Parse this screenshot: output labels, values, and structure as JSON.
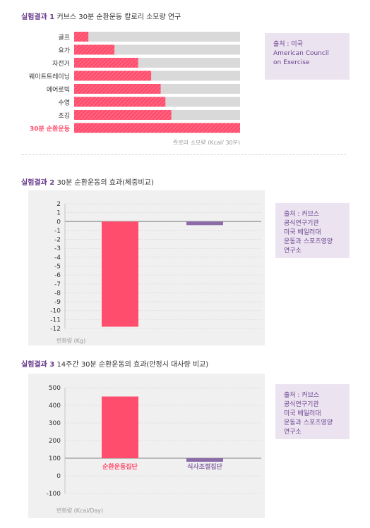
{
  "sections": [
    {
      "label": "실험결과 1",
      "title": "커브스 30분 순환운동 칼로리 소모량 연구"
    },
    {
      "label": "실험결과 2",
      "title": "30분 순환운동의 효과(체중비교)"
    },
    {
      "label": "실험결과 3",
      "title": "14주간 30분 순환운동의 효과(안정시 대사량 비교)"
    }
  ],
  "sources": [
    [
      "출처 : 미국",
      "American Council",
      "on Exercise"
    ],
    [
      "출처 : 커브스",
      "공식연구기관",
      "미국 베일러대",
      "운동과 스포츠영양",
      "연구소"
    ],
    [
      "출처 : 커브스",
      "공식연구기관",
      "미국 베일러대",
      "운동과 스포츠영양",
      "연구소"
    ]
  ],
  "colors": {
    "accent": "#ff4d6d",
    "purple": "#8b6ba8",
    "track": "#d9d9d9",
    "panel": "#f0f0f0",
    "source_bg": "#ebe4f0"
  },
  "chart_data": [
    {
      "type": "bar",
      "orientation": "horizontal",
      "categories": [
        "골프",
        "요가",
        "자전거",
        "웨이트트레이닝",
        "에어로빅",
        "수영",
        "조깅",
        "30분 순환운동"
      ],
      "values": [
        60,
        170,
        270,
        325,
        365,
        385,
        410,
        700
      ],
      "max": 700,
      "highlight_category": "30분 순환운동",
      "xlabel": "칼로리 소모량 (Kcal/ 30분)"
    },
    {
      "type": "bar",
      "categories": [
        "",
        ""
      ],
      "values": [
        -11.8,
        -0.4
      ],
      "colors": [
        "#ff4d6d",
        "#8b6ba8"
      ],
      "ylim": [
        -12,
        2
      ],
      "yticks": [
        2,
        1,
        0,
        -1,
        -2,
        -3,
        -4,
        -5,
        -6,
        -7,
        -8,
        -9,
        -10,
        -11,
        -12
      ],
      "ylabel": "변화량 (Kg)",
      "grid": true
    },
    {
      "type": "bar",
      "categories": [
        "순환운동집단",
        "식사조절집단"
      ],
      "values": [
        450,
        80
      ],
      "colors": [
        "#ff4d6d",
        "#8b6ba8"
      ],
      "baseline": 100,
      "ylim": [
        -100,
        500
      ],
      "yticks": [
        500,
        400,
        300,
        200,
        100,
        0,
        -100
      ],
      "ylabel": "변화량 (Kcal/Day)",
      "grid": true
    }
  ]
}
